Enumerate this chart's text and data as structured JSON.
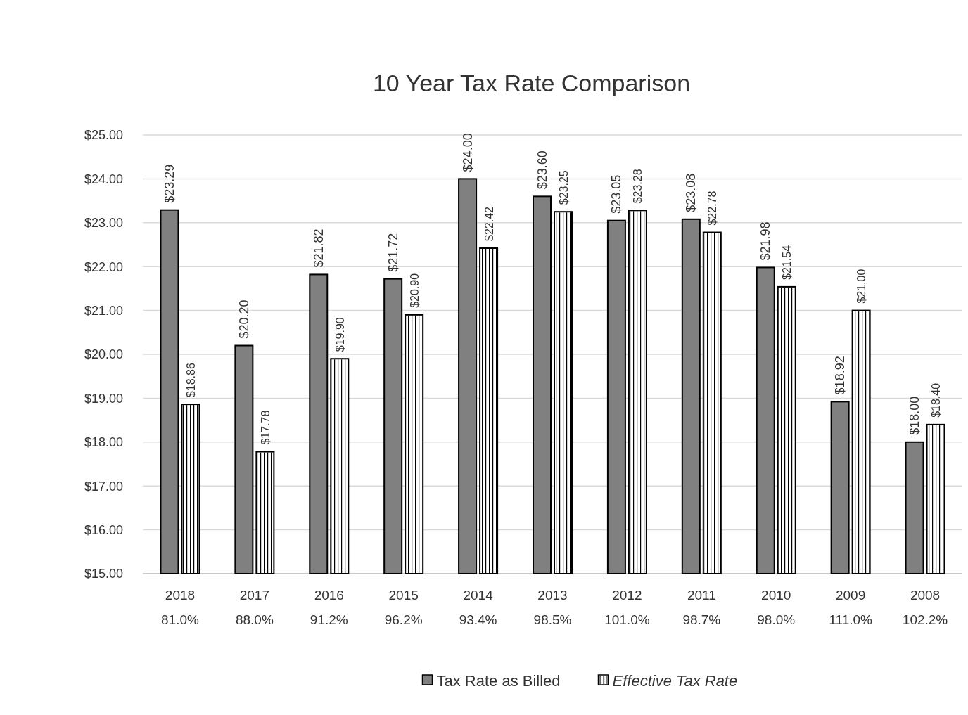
{
  "chart_data": {
    "type": "bar",
    "title": "10 Year Tax Rate Comparison",
    "categories": [
      "2018\n81.0%",
      "2017\n88.0%",
      "2016\n91.2%",
      "2015\n96.2%",
      "2014\n93.4%",
      "2013\n98.5%",
      "2012\n101.0%",
      "2011\n98.7%",
      "2010\n98.0%",
      "2009\n111.0%",
      "2008\n102.2%"
    ],
    "series": [
      {
        "name": "Tax Rate as Billed",
        "color": "#808080",
        "values": [
          23.29,
          20.2,
          21.82,
          21.72,
          24.0,
          23.6,
          23.05,
          23.08,
          21.98,
          18.92,
          18.0
        ],
        "value_labels": [
          "$23.29",
          "$20.20",
          "$21.82",
          "$21.72",
          "$24.00",
          "$23.60",
          "$23.05",
          "$23.08",
          "$21.98",
          "$18.92",
          "$18.00"
        ]
      },
      {
        "name": "Effective Tax Rate",
        "color": "#ffffff",
        "values": [
          18.86,
          17.78,
          19.9,
          20.9,
          22.42,
          23.25,
          23.28,
          22.78,
          21.54,
          21.0,
          18.4
        ],
        "value_labels": [
          "$18.86",
          "$17.78",
          "$19.90",
          "$20.90",
          "$22.42",
          "$23.25",
          "$23.28",
          "$22.78",
          "$21.54",
          "$21.00",
          "$18.40"
        ]
      }
    ],
    "ylim": [
      15,
      25
    ],
    "yticks": [
      {
        "value": 15,
        "label": "$15.00"
      },
      {
        "value": 16,
        "label": "$16.00"
      },
      {
        "value": 17,
        "label": "$17.00"
      },
      {
        "value": 18,
        "label": "$18.00"
      },
      {
        "value": 19,
        "label": "$19.00"
      },
      {
        "value": 20,
        "label": "$20.00"
      },
      {
        "value": 21,
        "label": "$21.00"
      },
      {
        "value": 22,
        "label": "$22.00"
      },
      {
        "value": 23,
        "label": "$23.00"
      },
      {
        "value": 24,
        "label": "$24.00"
      },
      {
        "value": 25,
        "label": "$25.00"
      }
    ],
    "grid": "y",
    "legend": "bottom"
  }
}
